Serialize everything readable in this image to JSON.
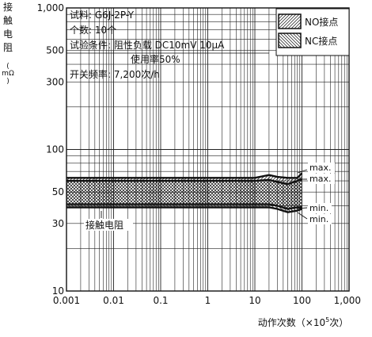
{
  "chart_data": {
    "type": "area",
    "xscale": "log",
    "yscale": "log",
    "xlim": [
      0.001,
      1000
    ],
    "ylim": [
      10,
      1000
    ],
    "grid": true,
    "x_ticks": [
      0.001,
      0.01,
      0.1,
      1,
      10,
      100,
      1000
    ],
    "x_tick_labels": [
      "0.001",
      "0.01",
      "0.1",
      "1",
      "10",
      "100",
      "1,000"
    ],
    "y_ticks": [
      10,
      30,
      50,
      100,
      300,
      500,
      1000
    ],
    "y_tick_labels": [
      "10",
      "30",
      "50",
      "100",
      "300",
      "500",
      "1,000"
    ],
    "ylabel_chars": [
      "接",
      "触",
      "电",
      "阻"
    ],
    "ylabel_unit": "mΩ",
    "xlabel": {
      "prefix": "动作次数（×10",
      "exp": "5",
      "suffix": "次）"
    },
    "test_conditions": [
      {
        "label": "试料:",
        "value": "G6J-2P-Y"
      },
      {
        "label": "个数:",
        "value": "10个"
      },
      {
        "label": "试验条件:",
        "value": "阻性负载 DC10mV 10μA"
      },
      {
        "label": "",
        "value": "使用率50%"
      },
      {
        "label": "开关频率:",
        "value": "7,200次/h"
      }
    ],
    "legend": {
      "position": "top-right",
      "entries": [
        {
          "name": "NO接点",
          "pattern": "hatch-forward"
        },
        {
          "name": "NC接点",
          "pattern": "hatch-backward"
        }
      ]
    },
    "series": [
      {
        "name": "NO接点",
        "pattern": "hatch-forward",
        "x": [
          0.001,
          10,
          20,
          30,
          50,
          80,
          100
        ],
        "upper": [
          63,
          63,
          66,
          64,
          63,
          63,
          68
        ],
        "lower": [
          41,
          41,
          41,
          40,
          38,
          39,
          39
        ]
      },
      {
        "name": "NC接点",
        "pattern": "hatch-backward",
        "x": [
          0.001,
          10,
          20,
          30,
          50,
          80,
          100
        ],
        "upper": [
          60,
          60,
          61,
          59,
          57,
          60,
          62
        ],
        "lower": [
          39,
          39,
          39,
          38,
          36,
          37,
          38
        ]
      }
    ],
    "annotations": [
      "max.",
      "max.",
      "min.",
      "min.",
      "接触电阻"
    ],
    "colors": {
      "line": "#111111",
      "grid": "#222222",
      "background": "#ffffff"
    }
  }
}
